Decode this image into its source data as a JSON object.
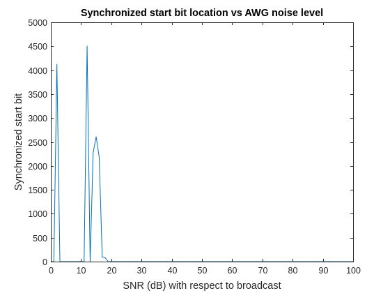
{
  "chart_data": {
    "type": "line",
    "title": "Synchronized start bit location vs AWG noise level",
    "xlabel": "SNR (dB) with respect to broadcast",
    "ylabel": "Synchronized start bit",
    "xlim": [
      0,
      100
    ],
    "ylim": [
      0,
      5000
    ],
    "xticks": [
      "0",
      "10",
      "20",
      "30",
      "40",
      "50",
      "60",
      "70",
      "80",
      "90",
      "100"
    ],
    "yticks": [
      "0",
      "500",
      "1000",
      "1500",
      "2000",
      "2500",
      "3000",
      "3500",
      "4000",
      "4500",
      "5000"
    ],
    "grid": false,
    "series": [
      {
        "color": "#0072bd",
        "x": [
          0,
          1,
          2,
          3,
          4,
          5,
          6,
          7,
          8,
          9,
          10,
          11,
          12,
          13,
          14,
          15,
          16,
          17,
          18,
          19,
          20,
          21,
          22,
          23,
          24,
          25,
          26,
          27,
          28,
          29,
          30,
          31,
          32,
          33,
          34,
          35,
          36,
          37,
          38,
          39,
          40,
          41,
          42,
          43,
          44,
          45,
          46,
          47,
          48,
          49,
          50,
          51,
          52,
          53,
          54,
          55,
          56,
          57,
          58,
          59,
          60,
          61,
          62,
          63,
          64,
          65,
          66,
          67,
          68,
          69,
          70,
          71,
          72,
          73,
          74,
          75,
          76,
          77,
          78,
          79,
          80,
          81,
          82,
          83,
          84,
          85,
          86,
          87,
          88,
          89,
          90,
          91,
          92,
          93,
          94,
          95,
          96,
          97,
          98,
          99,
          100
        ],
        "y": [
          0,
          0,
          4130,
          0,
          0,
          0,
          0,
          0,
          0,
          0,
          0,
          0,
          4510,
          0,
          2280,
          2610,
          2180,
          100,
          80,
          0,
          0,
          0,
          0,
          0,
          0,
          0,
          0,
          0,
          0,
          0,
          0,
          0,
          0,
          0,
          0,
          0,
          0,
          0,
          0,
          0,
          0,
          0,
          0,
          0,
          0,
          0,
          0,
          0,
          0,
          0,
          0,
          0,
          0,
          0,
          0,
          0,
          0,
          0,
          0,
          0,
          0,
          0,
          0,
          0,
          0,
          0,
          0,
          0,
          0,
          0,
          0,
          0,
          0,
          0,
          0,
          0,
          0,
          0,
          0,
          0,
          0,
          0,
          0,
          0,
          0,
          0,
          0,
          0,
          0,
          0,
          0,
          0,
          0,
          0,
          0,
          0,
          0,
          0,
          0,
          0,
          0
        ]
      }
    ]
  }
}
